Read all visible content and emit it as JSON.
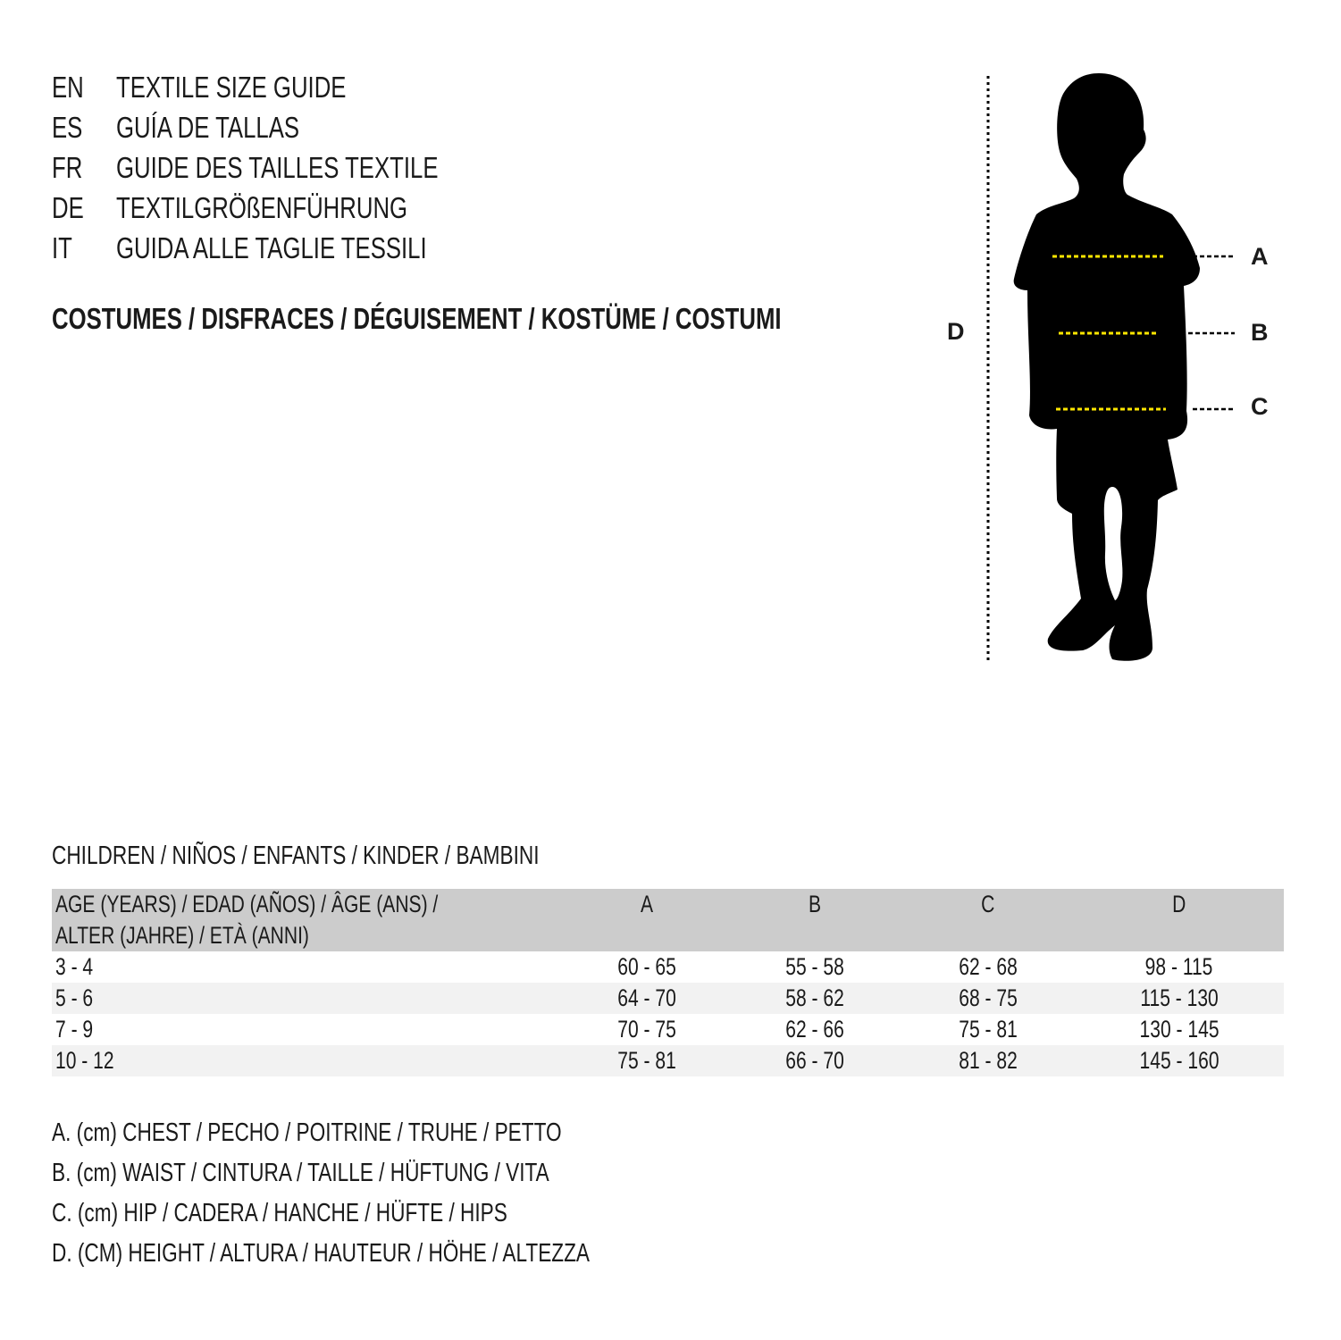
{
  "header": {
    "languages": [
      {
        "code": "EN",
        "title": "TEXTILE SIZE GUIDE"
      },
      {
        "code": "ES",
        "title": "GUÍA DE TALLAS"
      },
      {
        "code": "FR",
        "title": "GUIDE DES TAILLES TEXTILE"
      },
      {
        "code": "DE",
        "title": "TEXTILGRÖßENFÜHRUNG"
      },
      {
        "code": "IT",
        "title": "GUIDA ALLE TAGLIE TESSILI"
      }
    ],
    "category": "COSTUMES / DISFRACES / DÉGUISEMENT / KOSTÜME / COSTUMI"
  },
  "figure": {
    "labels": {
      "a": "A",
      "b": "B",
      "c": "C",
      "d": "D"
    },
    "colors": {
      "silhouette": "#000000",
      "measure_lines": "#ffe600"
    }
  },
  "table": {
    "section_title": "CHILDREN / NIÑOS / ENFANTS / KINDER / BAMBINI",
    "header": {
      "age_line1": "AGE (YEARS) / EDAD (AÑOS) / ÂGE (ANS) /",
      "age_line2": "ALTER (JAHRE) / ETÀ (ANNI)",
      "a": "A",
      "b": "B",
      "c": "C",
      "d": "D"
    },
    "rows": [
      {
        "age": "3 - 4",
        "a": "60 - 65",
        "b": "55 - 58",
        "c": "62 - 68",
        "d": "98 - 115"
      },
      {
        "age": "5 - 6",
        "a": "64 - 70",
        "b": "58 - 62",
        "c": "68 - 75",
        "d": "115 - 130"
      },
      {
        "age": "7 - 9",
        "a": "70 - 75",
        "b": "62 - 66",
        "c": "75 - 81",
        "d": "130 - 145"
      },
      {
        "age": "10 - 12",
        "a": "75 - 81",
        "b": "66 - 70",
        "c": "81 - 82",
        "d": "145 - 160"
      }
    ],
    "colors": {
      "header_bg": "#cccccc",
      "alt_row_bg": "#f2f2f2"
    }
  },
  "legend": [
    "A. (cm) CHEST / PECHO / POITRINE / TRUHE / PETTO",
    "B. (cm) WAIST / CINTURA / TAILLE / HÜFTUNG / VITA",
    "C. (cm) HIP / CADERA / HANCHE / HÜFTE / HIPS",
    "D. (CM) HEIGHT / ALTURA / HAUTEUR / HÖHE / ALTEZZA"
  ]
}
